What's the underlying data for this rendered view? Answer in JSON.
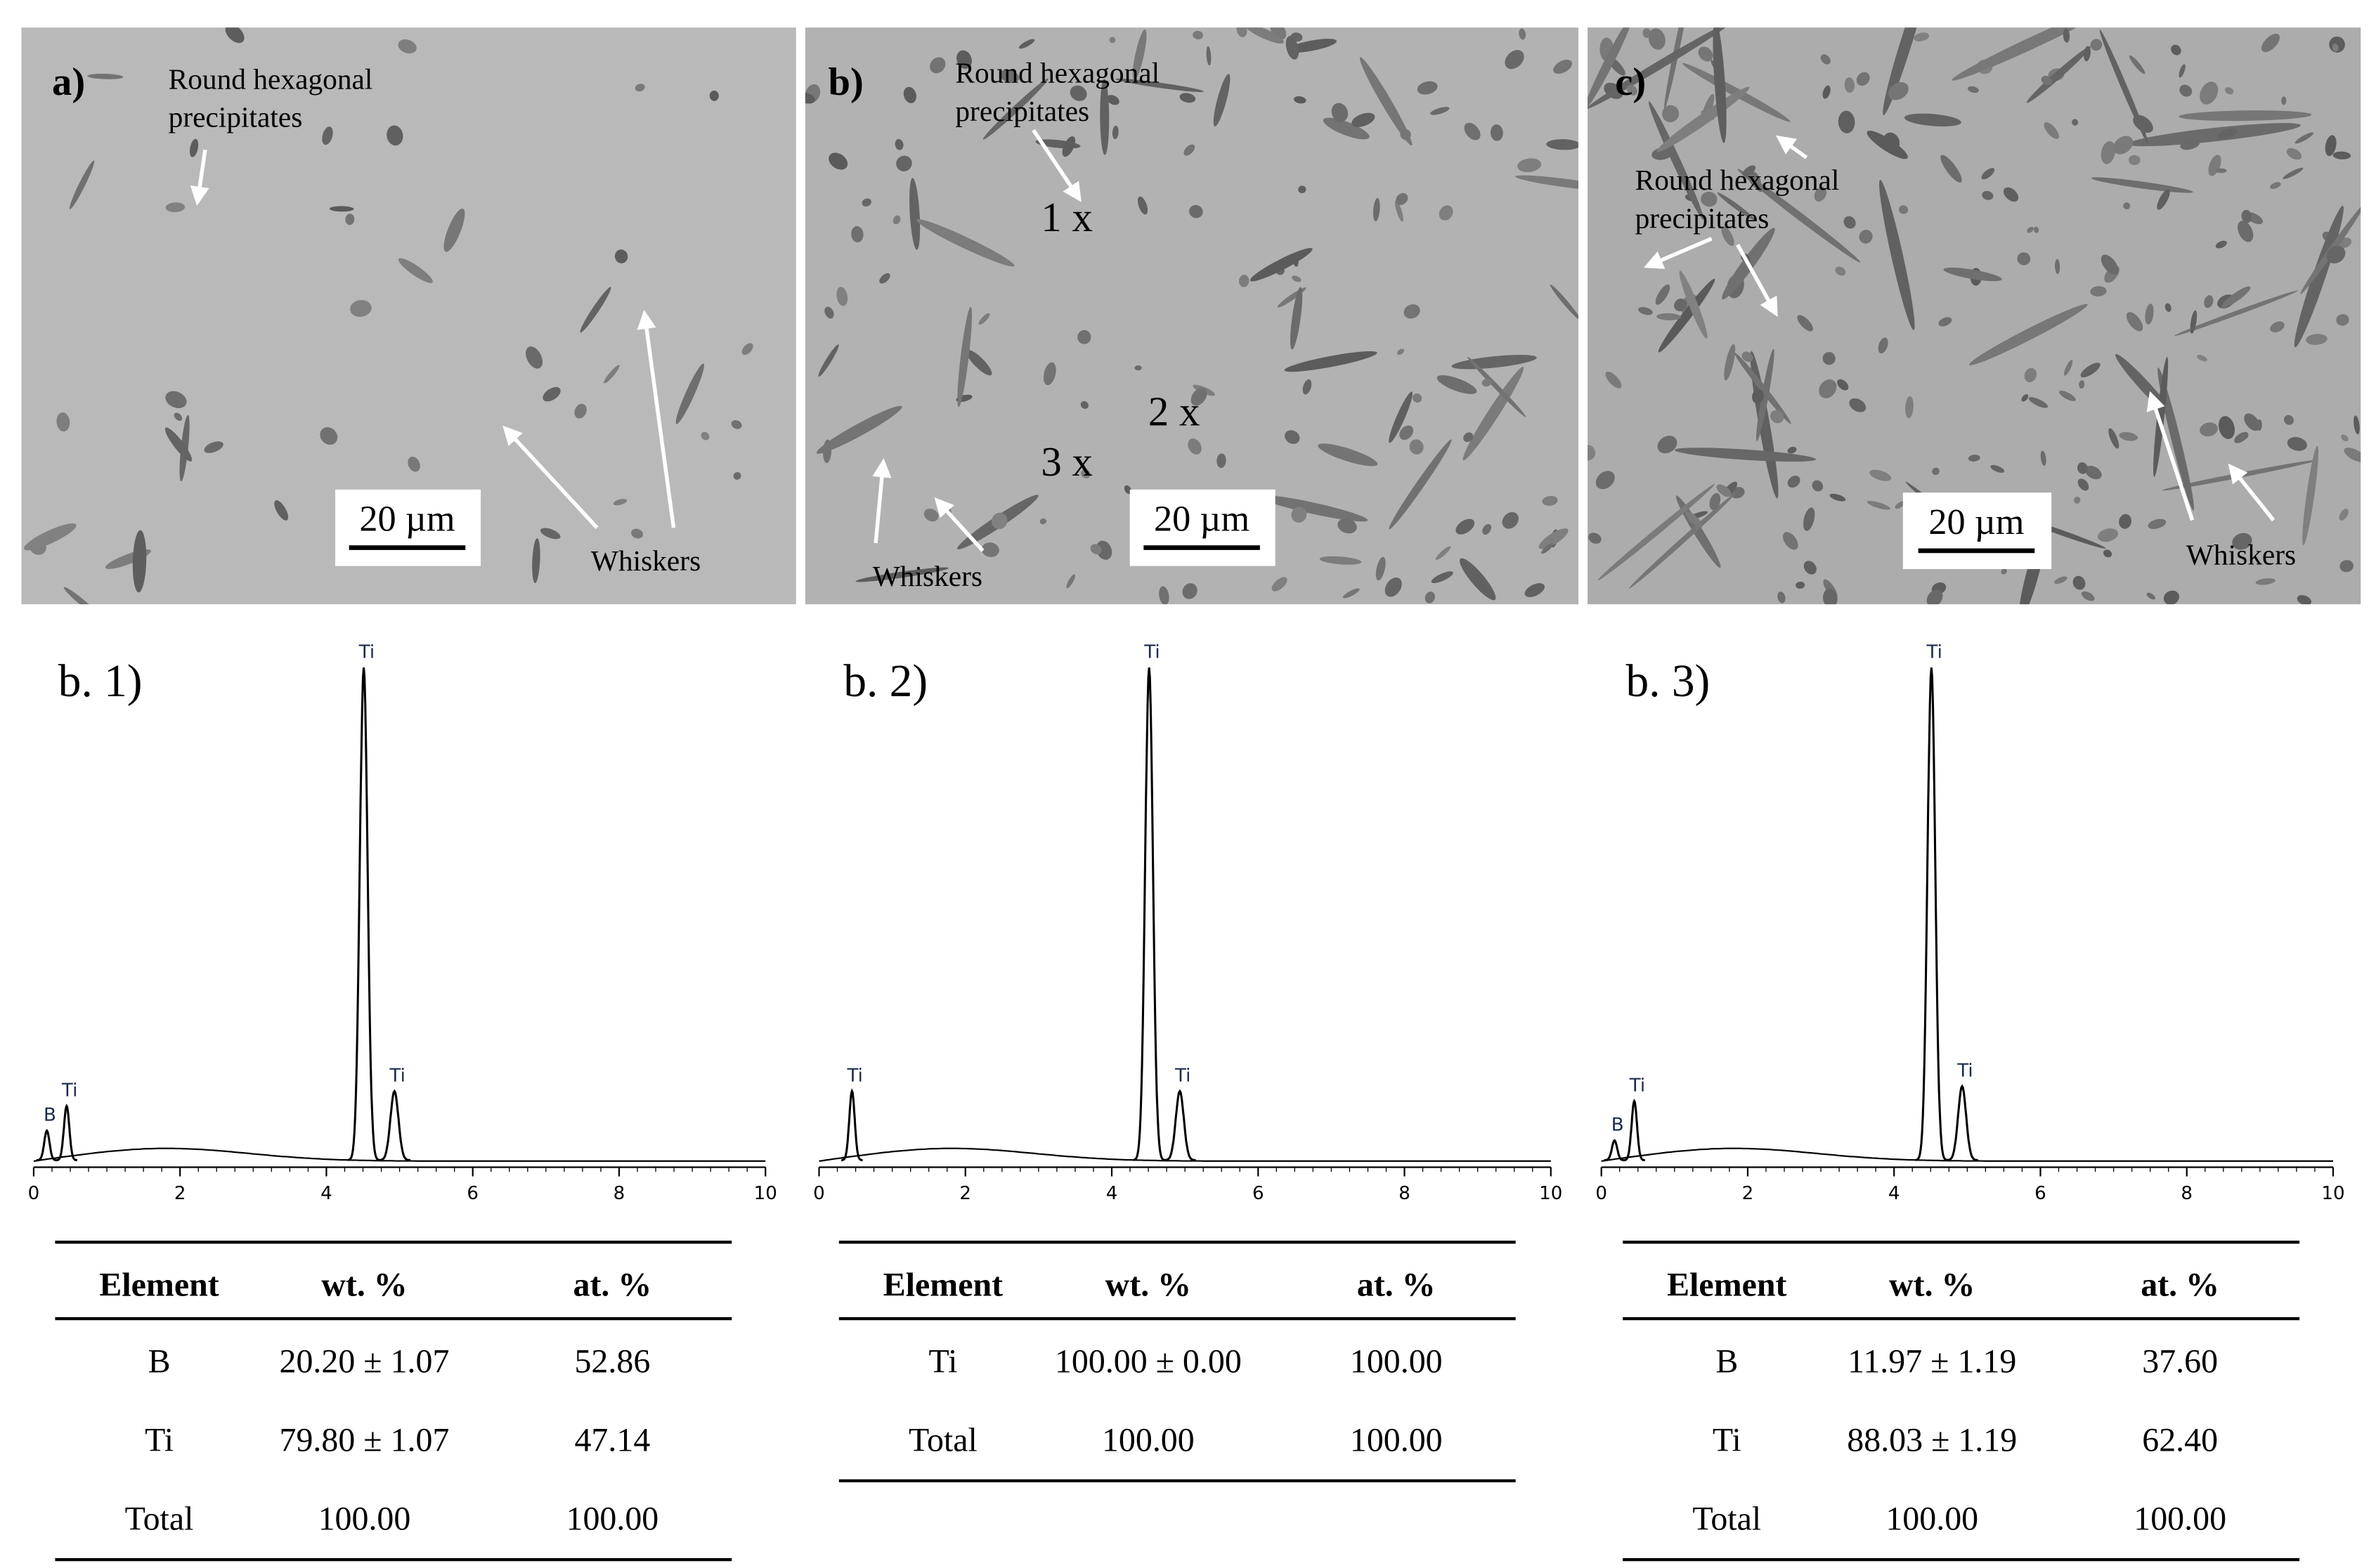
{
  "panels": [
    {
      "label": "a)",
      "annotations": [
        "Round hexagonal",
        "precipitates",
        "Whiskers"
      ],
      "scale_bar": "20 µm"
    },
    {
      "label": "b)",
      "annotations": [
        "Round hexagonal",
        "precipitates",
        "Whiskers"
      ],
      "points": [
        "1 x",
        "2 x",
        "3 x"
      ],
      "scale_bar": "20 µm"
    },
    {
      "label": "c)",
      "annotations": [
        "Round hexagonal",
        "precipitates",
        "Whiskers"
      ],
      "scale_bar": "20 µm"
    }
  ],
  "spectra": [
    {
      "title": "b. 1)",
      "xlim": [
        0,
        10
      ],
      "xticks": [
        0,
        2,
        4,
        6,
        8,
        10
      ],
      "peaks": [
        {
          "label": "B",
          "x": 0.18,
          "intensity": 6
        },
        {
          "label": "Ti",
          "x": 0.45,
          "intensity": 11
        },
        {
          "label": "Ti",
          "x": 4.51,
          "intensity": 100
        },
        {
          "label": "Ti",
          "x": 4.93,
          "intensity": 14
        }
      ]
    },
    {
      "title": "b. 2)",
      "xlim": [
        0,
        10
      ],
      "xticks": [
        0,
        2,
        4,
        6,
        8,
        10
      ],
      "peaks": [
        {
          "label": "Ti",
          "x": 0.45,
          "intensity": 14
        },
        {
          "label": "Ti",
          "x": 4.51,
          "intensity": 100
        },
        {
          "label": "Ti",
          "x": 4.93,
          "intensity": 14
        }
      ]
    },
    {
      "title": "b. 3)",
      "xlim": [
        0,
        10
      ],
      "xticks": [
        0,
        2,
        4,
        6,
        8,
        10
      ],
      "peaks": [
        {
          "label": "B",
          "x": 0.18,
          "intensity": 4
        },
        {
          "label": "Ti",
          "x": 0.45,
          "intensity": 12
        },
        {
          "label": "Ti",
          "x": 4.51,
          "intensity": 100
        },
        {
          "label": "Ti",
          "x": 4.93,
          "intensity": 15
        }
      ]
    }
  ],
  "tables": [
    {
      "header": [
        "Element",
        "wt. %",
        "at. %"
      ],
      "rows": [
        [
          "B",
          "20.20 ± 1.07",
          "52.86"
        ],
        [
          "Ti",
          "79.80 ± 1.07",
          "47.14"
        ],
        [
          "Total",
          "100.00",
          "100.00"
        ]
      ]
    },
    {
      "header": [
        "Element",
        "wt. %",
        "at. %"
      ],
      "rows": [
        [
          "Ti",
          "100.00 ± 0.00",
          "100.00"
        ],
        [
          "Total",
          "100.00",
          "100.00"
        ]
      ]
    },
    {
      "header": [
        "Element",
        "wt. %",
        "at. %"
      ],
      "rows": [
        [
          "B",
          "11.97 ± 1.19",
          "37.60"
        ],
        [
          "Ti",
          "88.03 ± 1.19",
          "62.40"
        ],
        [
          "Total",
          "100.00",
          "100.00"
        ]
      ]
    }
  ]
}
